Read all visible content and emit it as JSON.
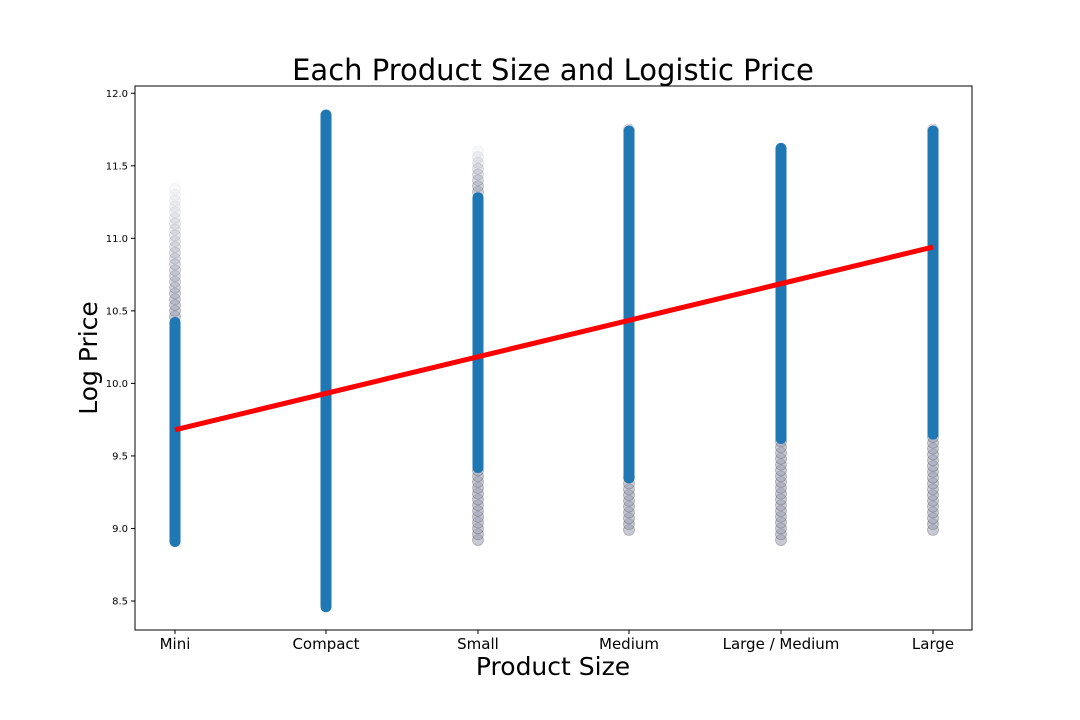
{
  "chart_data": {
    "type": "scatter",
    "title": "Each Product Size and Logistic Price",
    "xlabel": "Product Size",
    "ylabel": "Log Price",
    "categories": [
      "Mini",
      "Compact",
      "Small",
      "Medium",
      "Large / Medium",
      "Large"
    ],
    "ylim": [
      8.3,
      12.05
    ],
    "yticks": [
      "8.5",
      "9.0",
      "9.5",
      "10.0",
      "10.5",
      "11.0",
      "11.5",
      "12.0"
    ],
    "grid": false,
    "series": [
      {
        "color": "#1f77b4",
        "ranges": [
          {
            "category": "Mini",
            "dense_min": 8.91,
            "dense_max": 10.42,
            "sparse_min": 10.42,
            "sparse_max": 11.35
          },
          {
            "category": "Compact",
            "dense_min": 8.46,
            "dense_max": 11.85,
            "sparse_min": 11.85,
            "sparse_max": 11.85
          },
          {
            "category": "Small",
            "dense_min": 9.42,
            "dense_max": 11.28,
            "sparse_min": 8.92,
            "sparse_max": 11.62
          },
          {
            "category": "Medium",
            "dense_min": 9.35,
            "dense_max": 11.74,
            "sparse_min": 8.99,
            "sparse_max": 11.76
          },
          {
            "category": "Large / Medium",
            "dense_min": 9.62,
            "dense_max": 11.62,
            "sparse_min": 8.92,
            "sparse_max": 11.62
          },
          {
            "category": "Large",
            "dense_min": 9.65,
            "dense_max": 11.74,
            "sparse_min": 8.99,
            "sparse_max": 11.76
          }
        ]
      }
    ],
    "fit_line": {
      "color": "#ff0000",
      "x": [
        "Mini",
        "Large"
      ],
      "y": [
        9.68,
        10.94
      ]
    }
  }
}
